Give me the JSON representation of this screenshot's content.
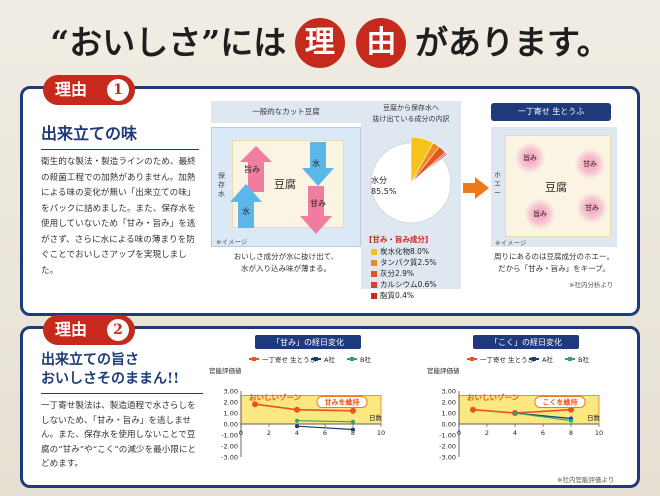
{
  "headline": {
    "part1": "“おいしさ”には",
    "char1": "理",
    "char2": "由",
    "part2": "があります。"
  },
  "reason1": {
    "tab_label": "理由",
    "tab_number": "1",
    "title": "出来立ての味",
    "body": "衛生的な製法・製造ラインのため、最終の殺菌工程での加熱がありません。加熱による味の変化が無い「出来立ての味」をパックに詰めました。また、保存水を使用していないため「甘み・旨み」を逃がさず、さらに水による味の薄まりを防ぐことでおいしさアップを実現しました。",
    "left_box": {
      "label": "一般的なカット豆腐",
      "tofu": "豆腐",
      "side": "保存水",
      "umami": "旨み",
      "amami": "甘み",
      "water": "水",
      "note": "※イメージ",
      "caption_line1": "おいしさ成分が水に抜け出て、",
      "caption_line2": "水が入り込み味が薄まる。"
    },
    "middle_box": {
      "label_line1": "豆腐から保存水へ",
      "label_line2": "抜け出ている成分の内訳",
      "water_label": "水分",
      "water_value": "85.5%",
      "umami_label": "[甘み・旨み成分]",
      "components": [
        {
          "name": "炭水化物",
          "value": "8.0%"
        },
        {
          "name": "タンパク質",
          "value": "2.5%"
        },
        {
          "name": "灰分",
          "value": "2.9%"
        },
        {
          "name": "カルシウム",
          "value": "0.6%"
        },
        {
          "name": "脂質",
          "value": "0.4%"
        }
      ]
    },
    "right_box": {
      "label": "一丁寄せ 生とうふ",
      "tofu": "豆腐",
      "side": "ホエー",
      "dots": [
        "旨み",
        "甘み",
        "旨み",
        "甘み"
      ],
      "note": "※イメージ",
      "caption_line1": "周りにあるのは豆腐成分のホエー。",
      "caption_line2": "だから「甘み・旨み」をキープ。",
      "source": "※社内分析より"
    }
  },
  "reason2": {
    "tab_label": "理由",
    "tab_number": "2",
    "title_line1": "出来立ての旨さ",
    "title_line2": "おいしさそのままん!!",
    "body": "一丁寄せ製法は、製造過程で水さらしをしないため、「甘み・旨み」を逃しません。また、保存水を使用しないことで豆腐の“甘み”や“こく”の減少を最小限にとどめます。",
    "source": "※社内官能評価より"
  },
  "colors": {
    "navy": "#1e3a7a",
    "red": "#c62a1c",
    "orange": "#f07a1a",
    "series_ichicho": "#e8541a",
    "series_a": "#1e3a7a",
    "series_b": "#2aa673",
    "zone": "#fbe883"
  },
  "chart_data": [
    {
      "type": "line",
      "title": "「甘み」の経日変化",
      "ylabel": "官能評価値",
      "xlabel": "日数",
      "xlim": [
        0,
        10
      ],
      "ylim": [
        -3,
        3
      ],
      "x_ticks": [
        0,
        2,
        4,
        6,
        8,
        10
      ],
      "y_tick_labels": [
        "3.00",
        "2.00",
        "1.00",
        "0.00",
        "-1.00",
        "-2.00",
        "-3.00"
      ],
      "zone_label": "おいしいゾーン",
      "zone_range": [
        0,
        2.6
      ],
      "callout": "甘みを維持",
      "grid": false,
      "legend": "top",
      "series": [
        {
          "name": "一丁寄せ 生とうふ",
          "x": [
            1,
            4,
            8
          ],
          "y": [
            1.8,
            1.3,
            1.2
          ]
        },
        {
          "name": "A社",
          "x": [
            4,
            8
          ],
          "y": [
            -0.2,
            -0.5
          ]
        },
        {
          "name": "B社",
          "x": [
            4,
            8
          ],
          "y": [
            0.3,
            0.2
          ]
        }
      ]
    },
    {
      "type": "line",
      "title": "「こく」の経日変化",
      "ylabel": "官能評価値",
      "xlabel": "日数",
      "xlim": [
        0,
        10
      ],
      "ylim": [
        -3,
        3
      ],
      "x_ticks": [
        0,
        2,
        4,
        6,
        8,
        10
      ],
      "y_tick_labels": [
        "3.00",
        "2.00",
        "1.00",
        "0.00",
        "-1.00",
        "-2.00",
        "-3.00"
      ],
      "zone_label": "おいしいゾーン",
      "zone_range": [
        0,
        2.6
      ],
      "callout": "こくを維持",
      "grid": false,
      "legend": "top",
      "series": [
        {
          "name": "一丁寄せ 生とうふ",
          "x": [
            1,
            4,
            8
          ],
          "y": [
            1.3,
            1.0,
            1.3
          ]
        },
        {
          "name": "A社",
          "x": [
            4,
            8
          ],
          "y": [
            1.0,
            0.5
          ]
        },
        {
          "name": "B社",
          "x": [
            4,
            8
          ],
          "y": [
            1.0,
            0.3
          ]
        }
      ]
    }
  ]
}
